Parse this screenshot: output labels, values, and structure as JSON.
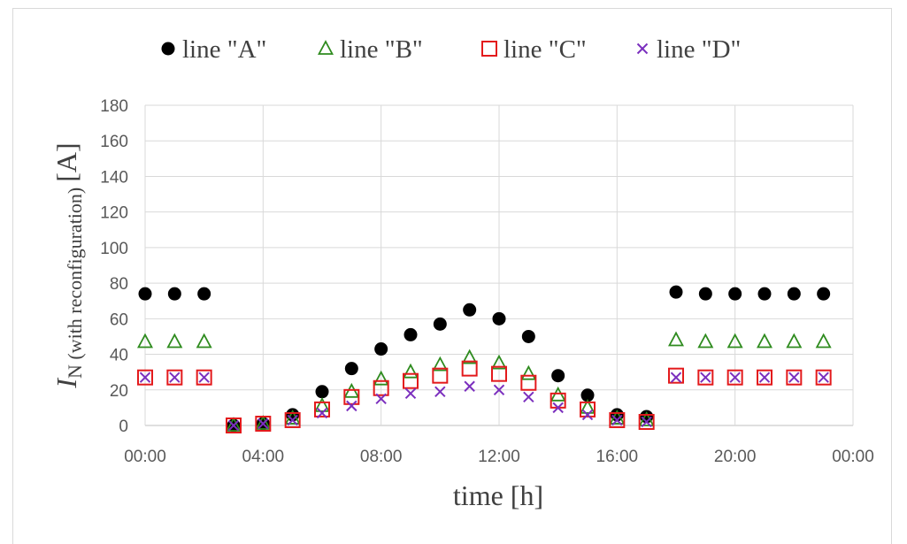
{
  "chart_data": {
    "type": "scatter",
    "xlabel": "time [h]",
    "ylabel": {
      "symbol": "I",
      "subscript": "N (with reconfiguration)",
      "unit": "[A]"
    },
    "xlim": [
      0,
      24
    ],
    "ylim": [
      0,
      180
    ],
    "x_tick_values": [
      0,
      4,
      8,
      12,
      16,
      20,
      24
    ],
    "x_tick_labels": [
      "00:00",
      "04:00",
      "08:00",
      "12:00",
      "16:00",
      "20:00",
      "00:00"
    ],
    "y_ticks": [
      0,
      20,
      40,
      60,
      80,
      100,
      120,
      140,
      160,
      180
    ],
    "grid": true,
    "legend_position": "top",
    "x": [
      "00:00",
      "01:00",
      "02:00",
      "03:00",
      "04:00",
      "05:00",
      "06:00",
      "07:00",
      "08:00",
      "09:00",
      "10:00",
      "11:00",
      "12:00",
      "13:00",
      "14:00",
      "15:00",
      "16:00",
      "17:00",
      "18:00",
      "19:00",
      "20:00",
      "21:00",
      "22:00",
      "23:00"
    ],
    "series": [
      {
        "name": "line \"A\"",
        "marker": "circle",
        "color": "#000000",
        "values": [
          74,
          74,
          74,
          0,
          1,
          6,
          19,
          32,
          43,
          51,
          57,
          65,
          60,
          50,
          28,
          17,
          6,
          5,
          75,
          74,
          74,
          74,
          74,
          74
        ]
      },
      {
        "name": "line \"B\"",
        "marker": "triangle",
        "color": "#2e8b1e",
        "values": [
          47,
          47,
          47,
          0,
          1,
          4,
          11,
          19,
          26,
          30,
          34,
          38,
          35,
          29,
          17,
          10,
          4,
          3,
          48,
          47,
          47,
          47,
          47,
          47
        ]
      },
      {
        "name": "line \"C\"",
        "marker": "square",
        "color": "#e31a1c",
        "values": [
          27,
          27,
          27,
          0,
          1,
          3,
          9,
          16,
          21,
          25,
          28,
          32,
          29,
          24,
          14,
          9,
          3,
          2,
          28,
          27,
          27,
          27,
          27,
          27
        ]
      },
      {
        "name": "line \"D\"",
        "marker": "x",
        "color": "#7b2fbe",
        "values": [
          27,
          27,
          27,
          0,
          1,
          3,
          7,
          11,
          15,
          18,
          19,
          22,
          20,
          16,
          10,
          6,
          3,
          2,
          27,
          27,
          27,
          27,
          27,
          27
        ]
      }
    ]
  }
}
